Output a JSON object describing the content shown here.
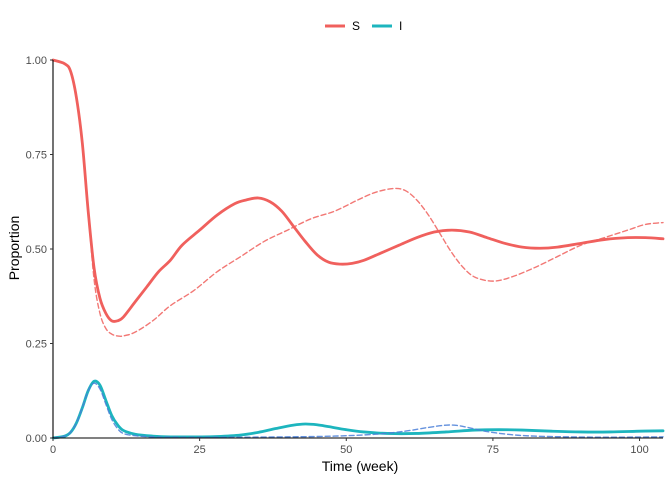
{
  "chart_data": {
    "type": "line",
    "title": "",
    "xlabel": "Time (week)",
    "ylabel": "Proportion",
    "xlim": [
      0,
      104
    ],
    "ylim": [
      0,
      1
    ],
    "x_ticks": [
      {
        "value": 0,
        "label": "0"
      },
      {
        "value": 25,
        "label": "25"
      },
      {
        "value": 50,
        "label": "50"
      },
      {
        "value": 75,
        "label": "75"
      },
      {
        "value": 100,
        "label": "100"
      }
    ],
    "y_ticks": [
      {
        "value": 0,
        "label": "0.00"
      },
      {
        "value": 0.25,
        "label": "0.25"
      },
      {
        "value": 0.5,
        "label": "0.50"
      },
      {
        "value": 0.75,
        "label": "0.75"
      },
      {
        "value": 1,
        "label": "1.00"
      }
    ],
    "grid": false,
    "legend_position": "top",
    "legend": [
      {
        "name": "S",
        "color": "#F0605D"
      },
      {
        "name": "I",
        "color": "#1DB5BE"
      }
    ],
    "series": [
      {
        "name": "S",
        "style": "solid",
        "color": "#F0605D",
        "points": [
          [
            0,
            1.0
          ],
          [
            2,
            0.99
          ],
          [
            3,
            0.97
          ],
          [
            4,
            0.9
          ],
          [
            5,
            0.78
          ],
          [
            6,
            0.6
          ],
          [
            7,
            0.45
          ],
          [
            8,
            0.37
          ],
          [
            9,
            0.33
          ],
          [
            10,
            0.31
          ],
          [
            11,
            0.31
          ],
          [
            12,
            0.32
          ],
          [
            14,
            0.36
          ],
          [
            16,
            0.4
          ],
          [
            18,
            0.44
          ],
          [
            20,
            0.47
          ],
          [
            22,
            0.51
          ],
          [
            25,
            0.55
          ],
          [
            28,
            0.59
          ],
          [
            31,
            0.62
          ],
          [
            33,
            0.63
          ],
          [
            35,
            0.635
          ],
          [
            37,
            0.625
          ],
          [
            39,
            0.6
          ],
          [
            41,
            0.56
          ],
          [
            43,
            0.52
          ],
          [
            45,
            0.485
          ],
          [
            47,
            0.465
          ],
          [
            49,
            0.46
          ],
          [
            51,
            0.462
          ],
          [
            53,
            0.47
          ],
          [
            56,
            0.49
          ],
          [
            59,
            0.51
          ],
          [
            62,
            0.53
          ],
          [
            65,
            0.545
          ],
          [
            68,
            0.55
          ],
          [
            71,
            0.545
          ],
          [
            74,
            0.53
          ],
          [
            77,
            0.515
          ],
          [
            80,
            0.505
          ],
          [
            83,
            0.502
          ],
          [
            86,
            0.505
          ],
          [
            90,
            0.515
          ],
          [
            94,
            0.525
          ],
          [
            98,
            0.53
          ],
          [
            101,
            0.53
          ],
          [
            104,
            0.527
          ]
        ]
      },
      {
        "name": "S (dashed)",
        "style": "dashed",
        "color": "#F0605D",
        "points": [
          [
            0,
            1.0
          ],
          [
            2,
            0.99
          ],
          [
            3,
            0.97
          ],
          [
            4,
            0.9
          ],
          [
            5,
            0.78
          ],
          [
            6,
            0.6
          ],
          [
            7,
            0.42
          ],
          [
            8,
            0.33
          ],
          [
            9,
            0.29
          ],
          [
            10,
            0.275
          ],
          [
            11,
            0.27
          ],
          [
            12,
            0.27
          ],
          [
            14,
            0.28
          ],
          [
            17,
            0.31
          ],
          [
            20,
            0.35
          ],
          [
            24,
            0.39
          ],
          [
            28,
            0.44
          ],
          [
            32,
            0.48
          ],
          [
            36,
            0.52
          ],
          [
            40,
            0.55
          ],
          [
            44,
            0.58
          ],
          [
            48,
            0.6
          ],
          [
            52,
            0.63
          ],
          [
            55,
            0.65
          ],
          [
            58,
            0.66
          ],
          [
            60,
            0.655
          ],
          [
            62,
            0.63
          ],
          [
            64,
            0.59
          ],
          [
            66,
            0.54
          ],
          [
            68,
            0.49
          ],
          [
            70,
            0.45
          ],
          [
            72,
            0.425
          ],
          [
            75,
            0.415
          ],
          [
            78,
            0.425
          ],
          [
            82,
            0.45
          ],
          [
            86,
            0.48
          ],
          [
            90,
            0.51
          ],
          [
            94,
            0.53
          ],
          [
            98,
            0.55
          ],
          [
            101,
            0.565
          ],
          [
            104,
            0.57
          ]
        ]
      },
      {
        "name": "I",
        "style": "solid",
        "color": "#1DB5BE",
        "points": [
          [
            0,
            0.0
          ],
          [
            2,
            0.005
          ],
          [
            3,
            0.015
          ],
          [
            4,
            0.04
          ],
          [
            5,
            0.08
          ],
          [
            6,
            0.125
          ],
          [
            7,
            0.15
          ],
          [
            8,
            0.14
          ],
          [
            9,
            0.1
          ],
          [
            10,
            0.06
          ],
          [
            11,
            0.035
          ],
          [
            12,
            0.02
          ],
          [
            14,
            0.01
          ],
          [
            17,
            0.005
          ],
          [
            20,
            0.003
          ],
          [
            25,
            0.003
          ],
          [
            28,
            0.004
          ],
          [
            32,
            0.008
          ],
          [
            35,
            0.015
          ],
          [
            38,
            0.025
          ],
          [
            41,
            0.034
          ],
          [
            43,
            0.037
          ],
          [
            45,
            0.035
          ],
          [
            47,
            0.03
          ],
          [
            50,
            0.022
          ],
          [
            53,
            0.016
          ],
          [
            57,
            0.012
          ],
          [
            62,
            0.012
          ],
          [
            67,
            0.016
          ],
          [
            72,
            0.021
          ],
          [
            76,
            0.022
          ],
          [
            80,
            0.021
          ],
          [
            85,
            0.018
          ],
          [
            90,
            0.016
          ],
          [
            95,
            0.016
          ],
          [
            100,
            0.018
          ],
          [
            104,
            0.019
          ]
        ]
      },
      {
        "name": "I (dashed)",
        "style": "dashed",
        "color": "#4A7FD8",
        "points": [
          [
            0,
            0.0
          ],
          [
            2,
            0.005
          ],
          [
            3,
            0.015
          ],
          [
            4,
            0.04
          ],
          [
            5,
            0.08
          ],
          [
            6,
            0.125
          ],
          [
            7,
            0.145
          ],
          [
            8,
            0.13
          ],
          [
            9,
            0.09
          ],
          [
            10,
            0.05
          ],
          [
            11,
            0.025
          ],
          [
            12,
            0.012
          ],
          [
            14,
            0.006
          ],
          [
            17,
            0.003
          ],
          [
            20,
            0.002
          ],
          [
            30,
            0.002
          ],
          [
            40,
            0.003
          ],
          [
            48,
            0.005
          ],
          [
            55,
            0.01
          ],
          [
            60,
            0.018
          ],
          [
            64,
            0.028
          ],
          [
            67,
            0.034
          ],
          [
            69,
            0.033
          ],
          [
            71,
            0.027
          ],
          [
            74,
            0.017
          ],
          [
            78,
            0.009
          ],
          [
            82,
            0.005
          ],
          [
            88,
            0.003
          ],
          [
            95,
            0.002
          ],
          [
            104,
            0.003
          ]
        ]
      }
    ]
  }
}
